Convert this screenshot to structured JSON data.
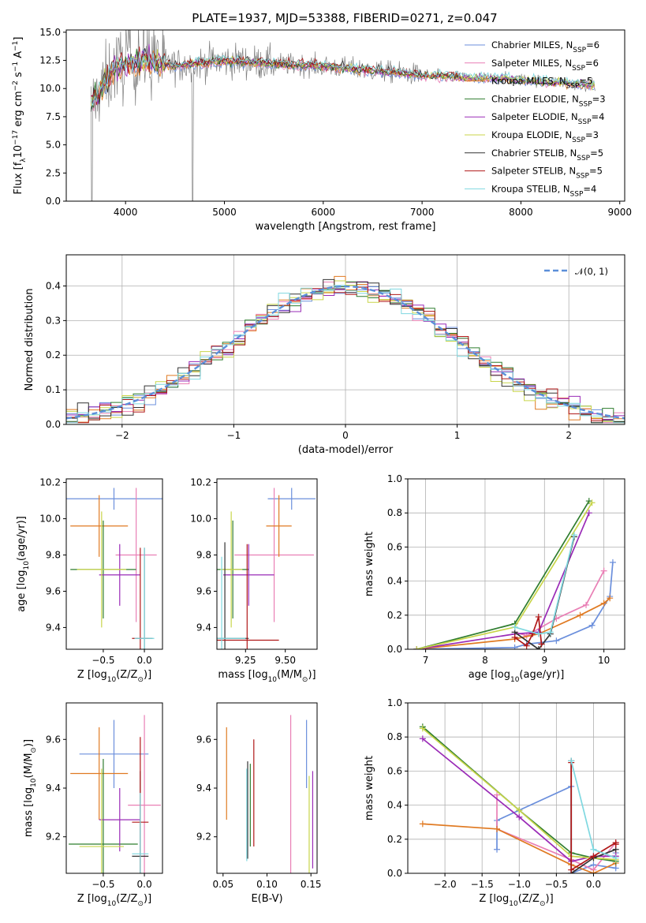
{
  "figure_title": "PLATE=1937, MJD=53388, FIBERID=0271, z=0.047",
  "series": [
    {
      "name": "Chabrier MILES",
      "nssp": "6",
      "color": "#6b8fdc"
    },
    {
      "name": "Salpeter MILES",
      "nssp": "6",
      "color": "#e97fb5"
    },
    {
      "name": "Kroupa MILES",
      "nssp": "5",
      "color": "#e07a22"
    },
    {
      "name": "Chabrier ELODIE",
      "nssp": "3",
      "color": "#2f7d2f"
    },
    {
      "name": "Salpeter ELODIE",
      "nssp": "4",
      "color": "#9a2bb7"
    },
    {
      "name": "Kroupa ELODIE",
      "nssp": "3",
      "color": "#c8d54a"
    },
    {
      "name": "Chabrier STELIB",
      "nssp": "5",
      "color": "#333333"
    },
    {
      "name": "Salpeter STELIB",
      "nssp": "5",
      "color": "#b01818"
    },
    {
      "name": "Kroupa STELIB",
      "nssp": "4",
      "color": "#7fd8e0"
    }
  ],
  "legend_nssp_prefix": "N",
  "legend_nssp_sub": "SSP",
  "chart_data": [
    {
      "id": "spectrum",
      "type": "line",
      "xlabel": "wavelength [Angstrom, rest frame]",
      "ylabel": "Flux [f",
      "ylabel_sub": "λ",
      "ylabel_rest": "10",
      "ylabel_exp": "−17",
      "ylabel_unit": " erg cm",
      "ylabel_unit_exp1": "−2",
      "ylabel_unit2": " s",
      "ylabel_unit_exp2": "−1",
      "ylabel_unit3": " A",
      "ylabel_unit_exp3": "−1",
      "ylabel_close": "]",
      "xlim": [
        3400,
        9050
      ],
      "ylim": [
        0,
        15.2
      ],
      "xticks": [
        "4000",
        "5000",
        "6000",
        "7000",
        "8000",
        "9000"
      ],
      "yticks": [
        "0.0",
        "2.5",
        "5.0",
        "7.5",
        "10.0",
        "12.5",
        "15.0"
      ],
      "legend": "top-right",
      "data_shape": {
        "x": [
          3650,
          3900,
          4200,
          4500,
          5000,
          5500,
          6000,
          6500,
          7000,
          7400,
          8000,
          8750
        ],
        "y": [
          8.5,
          12.0,
          12.5,
          12.0,
          12.5,
          12.2,
          12.0,
          11.6,
          11.2,
          11.0,
          10.8,
          10.3
        ]
      }
    },
    {
      "id": "residuals",
      "type": "histogram",
      "xlabel": "(data-model)/error",
      "ylabel": "Normed distribution",
      "xlim": [
        -2.5,
        2.5
      ],
      "ylim": [
        0,
        0.49
      ],
      "xticks": [
        "−2",
        "−1",
        "0",
        "1",
        "2"
      ],
      "yticks": [
        "0.0",
        "0.1",
        "0.2",
        "0.3",
        "0.4"
      ],
      "bin_width": 0.1,
      "legend_label": "𝒩(0, 1)",
      "legend": "top-right",
      "grid": true
    },
    {
      "id": "age_vs_Z",
      "type": "errorbar",
      "xlabel": "Z [log",
      "xlabel_sub": "10",
      "xlabel_rest": "(Z/Z",
      "xlabel_sub2": "⊙",
      "xlabel_close": ")]",
      "ylabel": "age  [log",
      "ylabel_sub": "10",
      "ylabel_rest": "(age/yr)]",
      "xlim": [
        -0.95,
        0.22
      ],
      "ylim": [
        9.28,
        10.22
      ],
      "xticks": [
        "−0.5",
        "0.0"
      ],
      "yticks": [
        "9.4",
        "9.6",
        "9.8",
        "10.0",
        "10.2"
      ],
      "points": [
        {
          "x": -0.37,
          "xerr": 0.6,
          "y": 10.11,
          "yerr": 0.06
        },
        {
          "x": -0.1,
          "xerr": 0.25,
          "y": 9.8,
          "yerr": 0.37
        },
        {
          "x": -0.55,
          "xerr": 0.35,
          "y": 9.96,
          "yerr": 0.17
        },
        {
          "x": -0.5,
          "xerr": 0.4,
          "y": 9.72,
          "yerr": 0.27
        },
        {
          "x": -0.3,
          "xerr": 0.25,
          "y": 9.69,
          "yerr": 0.17
        },
        {
          "x": -0.52,
          "xerr": 0.3,
          "y": 9.72,
          "yerr": 0.32
        },
        {
          "x": 0.0,
          "xerr": 0.1,
          "y": 9.34,
          "yerr": 0.5
        },
        {
          "x": -0.05,
          "xerr": 0.1,
          "y": 9.34,
          "yerr": 0.5
        },
        {
          "x": 0.0,
          "xerr": 0.12,
          "y": 9.34,
          "yerr": 0.5
        }
      ]
    },
    {
      "id": "age_vs_mass",
      "type": "errorbar",
      "xlabel": "mass [log",
      "xlabel_sub": "10",
      "xlabel_rest": "(M/M",
      "xlabel_sub2": "⊙",
      "xlabel_close": ")]",
      "xlim": [
        9.07,
        9.7
      ],
      "ylim": [
        9.28,
        10.22
      ],
      "xticks": [
        "9.25",
        "9.50"
      ],
      "yticks": [
        "9.4",
        "9.6",
        "9.8",
        "10.0",
        "10.2"
      ],
      "points": [
        {
          "x": 9.54,
          "xerr": 0.15,
          "y": 10.11,
          "yerr": 0.06
        },
        {
          "x": 9.43,
          "xerr": 0.25,
          "y": 9.8,
          "yerr": 0.37
        },
        {
          "x": 9.46,
          "xerr": 0.08,
          "y": 9.96,
          "yerr": 0.17
        },
        {
          "x": 9.17,
          "xerr": 0.1,
          "y": 9.72,
          "yerr": 0.27
        },
        {
          "x": 9.27,
          "xerr": 0.16,
          "y": 9.69,
          "yerr": 0.17
        },
        {
          "x": 9.16,
          "xerr": 0.07,
          "y": 9.72,
          "yerr": 0.32
        },
        {
          "x": 9.12,
          "xerr": 0.15,
          "y": 9.34,
          "yerr": 0.53
        },
        {
          "x": 9.26,
          "xerr": 0.2,
          "y": 9.33,
          "yerr": 0.53
        },
        {
          "x": 9.1,
          "xerr": 0.15,
          "y": 9.34,
          "yerr": 0.45
        }
      ]
    },
    {
      "id": "massweight_vs_age",
      "type": "line",
      "xlabel": "age  [log",
      "xlabel_sub": "10",
      "xlabel_rest": "(age/yr)]",
      "ylabel": "mass weight",
      "xlim": [
        6.7,
        10.35
      ],
      "ylim": [
        0,
        1.0
      ],
      "xticks": [
        "7",
        "8",
        "9",
        "10"
      ],
      "yticks": [
        "0.0",
        "0.2",
        "0.4",
        "0.6",
        "0.8",
        "1.0"
      ],
      "grid": true,
      "lines": [
        {
          "x": [
            6.85,
            8.5,
            8.7,
            9.2,
            9.8,
            10.1,
            10.15
          ],
          "y": [
            0.0,
            0.01,
            0.03,
            0.05,
            0.14,
            0.31,
            0.51
          ]
        },
        {
          "x": [
            8.5,
            8.7,
            9.2,
            9.7,
            10.0
          ],
          "y": [
            0.1,
            0.08,
            0.18,
            0.26,
            0.46
          ]
        },
        {
          "x": [
            6.85,
            8.5,
            8.9,
            9.6,
            10.0,
            10.1
          ],
          "y": [
            0.0,
            0.06,
            0.09,
            0.2,
            0.27,
            0.3
          ]
        },
        {
          "x": [
            6.85,
            8.5,
            9.75
          ],
          "y": [
            0.0,
            0.15,
            0.87
          ]
        },
        {
          "x": [
            6.85,
            8.5,
            8.9,
            9.75
          ],
          "y": [
            0.0,
            0.09,
            0.1,
            0.8
          ]
        },
        {
          "x": [
            6.85,
            8.5,
            9.8
          ],
          "y": [
            0.0,
            0.13,
            0.86
          ]
        },
        {
          "x": [
            8.5,
            8.9,
            9.1,
            9.5
          ],
          "y": [
            0.1,
            0.0,
            0.09,
            0.66
          ]
        },
        {
          "x": [
            8.5,
            8.7,
            8.8,
            8.9,
            8.95
          ],
          "y": [
            0.07,
            0.02,
            0.09,
            0.19,
            0.03
          ]
        },
        {
          "x": [
            8.5,
            8.9,
            9.1,
            9.5
          ],
          "y": [
            0.13,
            0.09,
            0.1,
            0.67
          ]
        }
      ]
    },
    {
      "id": "mass_vs_Z",
      "type": "errorbar",
      "xlabel": "Z [log",
      "xlabel_sub": "10",
      "xlabel_rest": "(Z/Z",
      "xlabel_sub2": "⊙",
      "xlabel_close": ")]",
      "ylabel": "mass [log",
      "ylabel_sub": "10",
      "ylabel_rest": "(M/M",
      "ylabel_sub2": "⊙",
      "ylabel_close": ")]",
      "xlim": [
        -0.95,
        0.22
      ],
      "ylim": [
        9.05,
        9.75
      ],
      "xticks": [
        "−0.5",
        "0.0"
      ],
      "yticks": [
        "9.2",
        "9.4",
        "9.6"
      ],
      "points": [
        {
          "x": -0.37,
          "xerr": 0.42,
          "y": 9.54,
          "yerr": 0.14
        },
        {
          "x": 0.0,
          "xerr": 0.2,
          "y": 9.33,
          "yerr": 0.37
        },
        {
          "x": -0.55,
          "xerr": 0.35,
          "y": 9.46,
          "yerr": 0.19
        },
        {
          "x": -0.5,
          "xerr": 0.42,
          "y": 9.17,
          "yerr": 0.35
        },
        {
          "x": -0.3,
          "xerr": 0.25,
          "y": 9.27,
          "yerr": 0.13
        },
        {
          "x": -0.52,
          "xerr": 0.27,
          "y": 9.16,
          "yerr": 0.32
        },
        {
          "x": -0.05,
          "xerr": 0.1,
          "y": 9.12,
          "yerr": 0.35
        },
        {
          "x": -0.05,
          "xerr": 0.1,
          "y": 9.26,
          "yerr": 0.35
        },
        {
          "x": -0.05,
          "xerr": 0.1,
          "y": 9.13,
          "yerr": 0.25
        }
      ]
    },
    {
      "id": "mass_vs_EBV",
      "type": "errorbar",
      "xlabel": "E(B-V)",
      "xlim": [
        0.043,
        0.157
      ],
      "ylim": [
        9.05,
        9.75
      ],
      "xticks": [
        "0.05",
        "0.10",
        "0.15"
      ],
      "yticks": [
        "9.2",
        "9.4",
        "9.6"
      ],
      "points": [
        {
          "x": 0.145,
          "y": 9.54,
          "yerr": 0.14
        },
        {
          "x": 0.127,
          "y": 9.33,
          "yerr": 0.37
        },
        {
          "x": 0.054,
          "y": 9.46,
          "yerr": 0.19
        },
        {
          "x": 0.081,
          "y": 9.33,
          "yerr": 0.17
        },
        {
          "x": 0.152,
          "y": 9.27,
          "yerr": 0.2
        },
        {
          "x": 0.148,
          "y": 9.25,
          "yerr": 0.2
        },
        {
          "x": 0.078,
          "y": 9.31,
          "yerr": 0.2
        },
        {
          "x": 0.085,
          "y": 9.38,
          "yerr": 0.22
        },
        {
          "x": 0.077,
          "y": 9.29,
          "yerr": 0.19
        }
      ]
    },
    {
      "id": "massweight_vs_Z",
      "type": "line",
      "xlabel": "Z [log",
      "xlabel_sub": "10",
      "xlabel_rest": "(Z/Z",
      "xlabel_sub2": "⊙",
      "xlabel_close": ")]",
      "ylabel": "mass weight",
      "xlim": [
        -2.5,
        0.42
      ],
      "ylim": [
        0,
        1.0
      ],
      "xticks": [
        "−2.0",
        "−1.5",
        "−1.0",
        "−0.5",
        "0.0"
      ],
      "yticks": [
        "0.0",
        "0.2",
        "0.4",
        "0.6",
        "0.8",
        "1.0"
      ],
      "grid": true,
      "lines": [
        {
          "x": [
            -1.3,
            -1.3,
            -0.3,
            -0.3,
            0.0,
            0.3,
            0.3
          ],
          "y": [
            0.14,
            0.31,
            0.51,
            0.0,
            0.05,
            0.03,
            0.12
          ]
        },
        {
          "x": [
            -1.3,
            -1.3,
            -0.3,
            0.0,
            0.3,
            0.3
          ],
          "y": [
            0.46,
            0.26,
            0.08,
            0.02,
            0.18,
            0.1
          ]
        },
        {
          "x": [
            -2.3,
            -1.3,
            -0.3,
            0.0,
            0.3
          ],
          "y": [
            0.29,
            0.26,
            0.05,
            0.0,
            0.06
          ]
        },
        {
          "x": [
            -2.3,
            -1.0,
            -0.3,
            0.0,
            0.3
          ],
          "y": [
            0.86,
            0.37,
            0.12,
            0.09,
            0.07
          ]
        },
        {
          "x": [
            -2.3,
            -1.0,
            -0.3,
            0.0,
            0.3
          ],
          "y": [
            0.79,
            0.33,
            0.07,
            0.1,
            0.1
          ]
        },
        {
          "x": [
            -2.3,
            -1.0,
            -0.3,
            0.0,
            0.3
          ],
          "y": [
            0.85,
            0.37,
            0.1,
            0.09,
            0.08
          ]
        },
        {
          "x": [
            -0.3,
            -0.3,
            0.0,
            0.3
          ],
          "y": [
            0.66,
            0.0,
            0.09,
            0.14
          ]
        },
        {
          "x": [
            -0.3,
            -0.3,
            0.0,
            0.3,
            0.3
          ],
          "y": [
            0.65,
            0.02,
            0.1,
            0.18,
            0.17
          ]
        },
        {
          "x": [
            -0.3,
            0.0,
            0.3
          ],
          "y": [
            0.66,
            0.14,
            0.09
          ]
        }
      ]
    }
  ]
}
